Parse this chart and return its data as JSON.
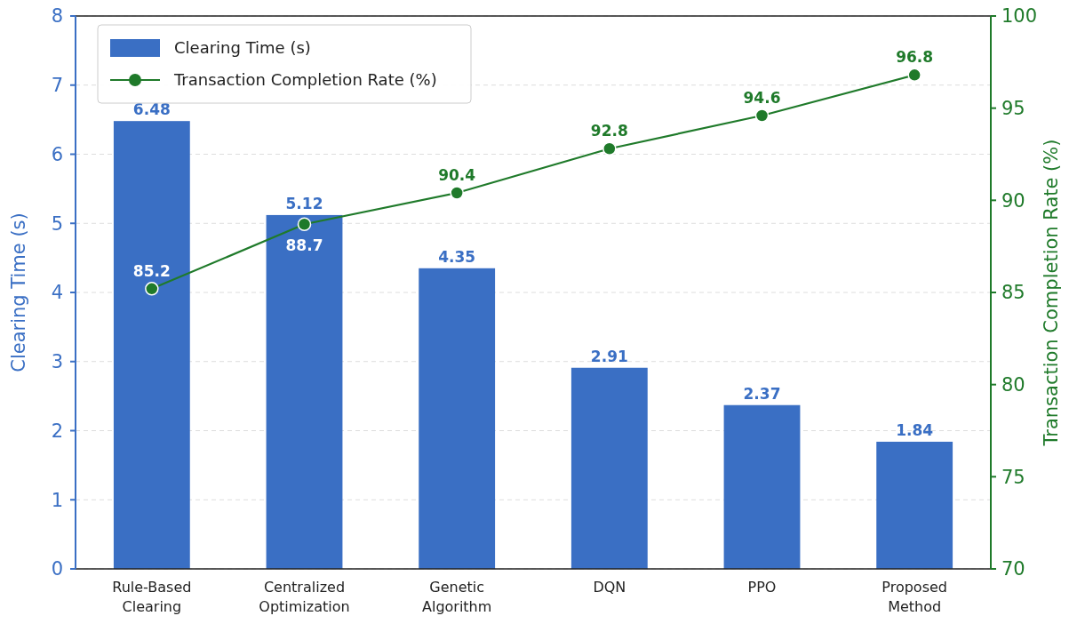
{
  "chart_data": {
    "type": "bar",
    "categories": [
      "Rule-Based Clearing",
      "Centralized Optimization",
      "Genetic Algorithm",
      "DQN",
      "PPO",
      "Proposed Method"
    ],
    "series": [
      {
        "name": "Clearing Time (s)",
        "color": "#3a6fc4",
        "values": [
          6.48,
          5.12,
          4.35,
          2.91,
          2.37,
          1.84
        ]
      },
      {
        "name": "Transaction Completion Rate (%)",
        "type": "line",
        "axis": "y2",
        "color": "#1f7a2a",
        "marker": "circle",
        "values": [
          85.2,
          88.7,
          90.4,
          92.8,
          94.6,
          96.8
        ]
      }
    ],
    "ylabel": "Clearing Time (s)",
    "y2label": "Transaction Completion Rate (%)",
    "ylim": [
      0,
      8
    ],
    "yticks": [
      0,
      1,
      2,
      3,
      4,
      5,
      6,
      7,
      8
    ],
    "y2lim": [
      70,
      100
    ],
    "y2ticks": [
      70,
      75,
      80,
      85,
      90,
      95,
      100
    ],
    "grid": "y",
    "legend": "top left",
    "data_labels": true
  }
}
